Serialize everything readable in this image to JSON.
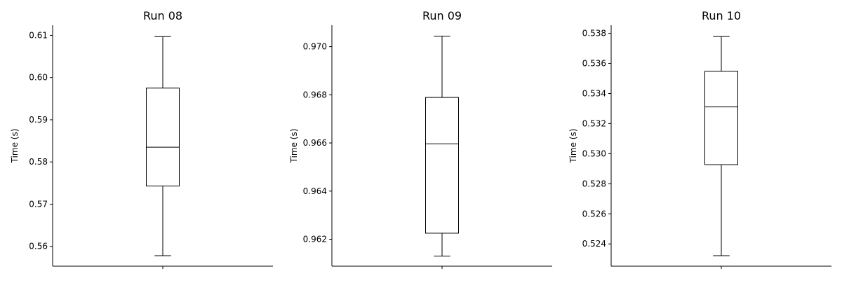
{
  "chart_data": [
    {
      "type": "box",
      "title": "Run 08",
      "ylabel": "Time (s)",
      "xlabel": "",
      "ylim": [
        0.5553,
        0.6124
      ],
      "yticks": [
        0.56,
        0.57,
        0.58,
        0.59,
        0.6,
        0.61
      ],
      "ytick_labels": [
        "0.56",
        "0.57",
        "0.58",
        "0.59",
        "0.60",
        "0.61"
      ],
      "box": {
        "whisker_low": 0.5578,
        "q1": 0.5743,
        "median": 0.5835,
        "q3": 0.5975,
        "whisker_high": 0.6097
      },
      "grid": false
    },
    {
      "type": "box",
      "title": "Run 09",
      "ylabel": "Time (s)",
      "xlabel": "",
      "ylim": [
        0.96088,
        0.97089
      ],
      "yticks": [
        0.962,
        0.964,
        0.966,
        0.968,
        0.97
      ],
      "ytick_labels": [
        "0.962",
        "0.964",
        "0.966",
        "0.968",
        "0.970"
      ],
      "box": {
        "whisker_low": 0.9613,
        "q1": 0.96225,
        "median": 0.96596,
        "q3": 0.96789,
        "whisker_high": 0.97043
      },
      "grid": false
    },
    {
      "type": "box",
      "title": "Run 10",
      "ylabel": "Time (s)",
      "xlabel": "",
      "ylim": [
        0.52252,
        0.53854
      ],
      "yticks": [
        0.524,
        0.526,
        0.528,
        0.53,
        0.532,
        0.534,
        0.536,
        0.538
      ],
      "ytick_labels": [
        "0.524",
        "0.526",
        "0.528",
        "0.530",
        "0.532",
        "0.534",
        "0.536",
        "0.538"
      ],
      "box": {
        "whisker_low": 0.52322,
        "q1": 0.52927,
        "median": 0.53311,
        "q3": 0.53548,
        "whisker_high": 0.53779
      },
      "grid": false
    }
  ]
}
